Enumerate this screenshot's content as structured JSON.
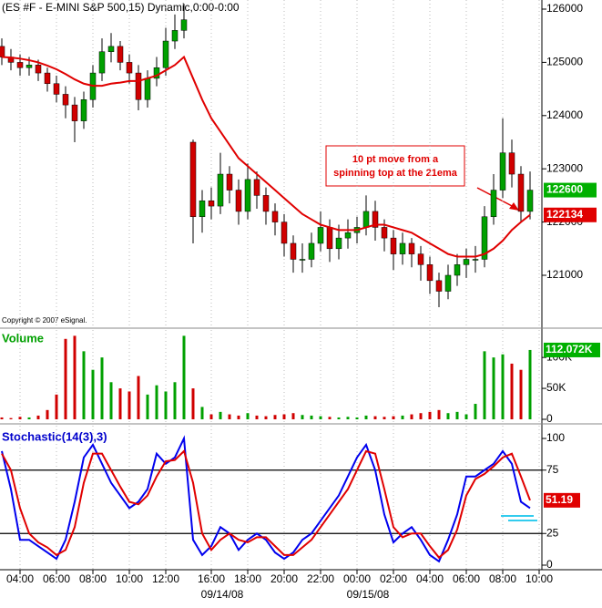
{
  "chart_data": [
    {
      "type": "candlestick",
      "title": "(ES #F - E-MINI S&P 500,15) Dynamic,0:00-0:00",
      "copyright": "Copyright © 2007 eSignal.",
      "annotation": "10 pt move from a spinning top at the 21ema",
      "ylim": [
        120050,
        126170
      ],
      "yticks": [
        121000,
        122000,
        123000,
        124000,
        125000,
        126000
      ],
      "up_color": "#00a000",
      "down_color": "#d00000",
      "open": [
        125300,
        125100,
        125000,
        124900,
        124950,
        124800,
        124600,
        124400,
        124200,
        123900,
        124300,
        124800,
        125200,
        125300,
        125000,
        124800,
        124300,
        124700,
        124900,
        125400,
        125600,
        123500,
        122100,
        122400,
        122300,
        122900,
        122600,
        122200,
        122800,
        122500,
        122200,
        122000,
        121600,
        121300,
        121300,
        121600,
        121900,
        121500,
        121700,
        121800,
        121900,
        122200,
        121900,
        121700,
        121400,
        121600,
        121400,
        121200,
        120900,
        120700,
        121000,
        121200,
        121300,
        121300,
        122100,
        122600,
        123300,
        122900,
        122200,
        null
      ],
      "high": [
        125450,
        125250,
        125150,
        125100,
        125050,
        124900,
        124750,
        124550,
        124350,
        124450,
        124950,
        125450,
        125550,
        125400,
        125150,
        124950,
        124850,
        125100,
        125650,
        125900,
        126100,
        123550,
        122600,
        122650,
        123300,
        123050,
        122800,
        123100,
        122950,
        122650,
        122350,
        122150,
        121750,
        121600,
        121800,
        122200,
        122050,
        121950,
        122050,
        122100,
        122500,
        122400,
        122050,
        121850,
        121800,
        121700,
        121550,
        121350,
        121050,
        121200,
        121400,
        121500,
        121550,
        122300,
        122900,
        123950,
        123550,
        123050,
        122950,
        null
      ],
      "low": [
        124950,
        124850,
        124750,
        124750,
        124650,
        124450,
        124250,
        123950,
        123500,
        123750,
        124150,
        124650,
        125000,
        124850,
        124600,
        124100,
        124150,
        124550,
        124750,
        125250,
        125450,
        121600,
        121800,
        122050,
        122150,
        122350,
        121950,
        122050,
        122250,
        121950,
        121750,
        121350,
        121050,
        121050,
        121150,
        121450,
        121250,
        121300,
        121500,
        121600,
        121750,
        121650,
        121450,
        121100,
        121200,
        121150,
        120900,
        120650,
        120400,
        120550,
        120800,
        120950,
        121050,
        121150,
        121950,
        122450,
        122650,
        122000,
        122050,
        null
      ],
      "close": [
        125100,
        125000,
        124900,
        124950,
        124800,
        124600,
        124400,
        124200,
        123900,
        124300,
        124800,
        125200,
        125300,
        125000,
        124800,
        124300,
        124700,
        124900,
        125400,
        125600,
        125800,
        122100,
        122400,
        122300,
        122900,
        122600,
        122200,
        122800,
        122500,
        122200,
        122000,
        121600,
        121300,
        121300,
        121600,
        121900,
        121500,
        121700,
        121800,
        121900,
        122200,
        121900,
        121700,
        121400,
        121600,
        121400,
        121200,
        120900,
        120700,
        121000,
        121200,
        121300,
        121300,
        122100,
        122600,
        123300,
        122900,
        122200,
        122600,
        null
      ],
      "ema": {
        "color": "#e00000",
        "values": [
          125100,
          125090,
          125070,
          125040,
          125000,
          124940,
          124870,
          124780,
          124680,
          124600,
          124560,
          124560,
          124600,
          124620,
          124650,
          124650,
          124700,
          124750,
          124850,
          124950,
          125100,
          124700,
          124300,
          123950,
          123700,
          123450,
          123200,
          123050,
          122900,
          122750,
          122600,
          122450,
          122300,
          122150,
          122050,
          121950,
          121900,
          121850,
          121850,
          121850,
          121900,
          121950,
          121950,
          121900,
          121850,
          121800,
          121700,
          121600,
          121500,
          121400,
          121350,
          121350,
          121350,
          121400,
          121500,
          121650,
          121850,
          122000,
          122134,
          null
        ]
      },
      "price_labels": [
        {
          "value": 122600,
          "color": "#00b000"
        },
        {
          "value": 122134,
          "color": "#e00000"
        }
      ]
    },
    {
      "type": "bar",
      "title": "Volume",
      "title_color": "#00a000",
      "ylim": [
        0,
        140000
      ],
      "yticks": [
        0,
        {
          "value": 50000,
          "label": "50K"
        },
        {
          "value": 100000,
          "label": "100K"
        }
      ],
      "values": [
        3000,
        2000,
        4000,
        3000,
        6000,
        15000,
        40000,
        130000,
        135000,
        110000,
        80000,
        100000,
        60000,
        50000,
        45000,
        70000,
        40000,
        55000,
        45000,
        60000,
        135000,
        50000,
        20000,
        8000,
        12000,
        8000,
        6000,
        10000,
        6000,
        5000,
        7000,
        8000,
        10000,
        7000,
        6000,
        5000,
        4000,
        3000,
        4000,
        3000,
        6000,
        5000,
        4000,
        5000,
        6000,
        8000,
        10000,
        12000,
        15000,
        10000,
        12000,
        8000,
        25000,
        110000,
        100000,
        105000,
        90000,
        80000,
        112072,
        null
      ],
      "last_label": {
        "value": 112072,
        "label": "112.072K",
        "color": "#00b000"
      }
    },
    {
      "type": "line",
      "title": "Stochastic(14(3),3)",
      "title_color": "#0000cc",
      "ylim": [
        0,
        100
      ],
      "yticks": [
        0,
        25,
        75,
        100
      ],
      "levels": [
        25,
        75
      ],
      "categories": [
        null,
        null,
        "04:00",
        null,
        null,
        null,
        "06:00",
        null,
        null,
        null,
        "08:00",
        null,
        null,
        null,
        "10:00",
        null,
        null,
        null,
        "12:00",
        null,
        null,
        null,
        null,
        "16:00",
        null,
        null,
        null,
        "18:00",
        null,
        null,
        null,
        "20:00",
        null,
        null,
        null,
        "22:00",
        null,
        null,
        null,
        "00:00",
        null,
        null,
        null,
        "02:00",
        null,
        null,
        null,
        "04:00",
        null,
        null,
        null,
        "06:00",
        null,
        null,
        null,
        "08:00",
        null,
        null,
        null,
        "10:00"
      ],
      "date_labels": [
        "09/14/08",
        "09/15/08"
      ],
      "series": [
        {
          "color": "#0000ee",
          "values": [
            90,
            60,
            20,
            20,
            15,
            10,
            5,
            20,
            50,
            85,
            95,
            80,
            65,
            55,
            45,
            50,
            60,
            88,
            80,
            85,
            100,
            20,
            8,
            15,
            30,
            25,
            12,
            20,
            25,
            20,
            10,
            5,
            10,
            20,
            25,
            35,
            45,
            55,
            70,
            85,
            95,
            75,
            40,
            18,
            25,
            30,
            20,
            8,
            3,
            20,
            40,
            70,
            70,
            75,
            80,
            90,
            80,
            50,
            45,
            null
          ]
        },
        {
          "color": "#e00000",
          "values": [
            88,
            75,
            45,
            25,
            18,
            14,
            8,
            12,
            30,
            65,
            88,
            88,
            75,
            62,
            50,
            48,
            55,
            70,
            82,
            83,
            90,
            65,
            25,
            12,
            20,
            25,
            20,
            18,
            22,
            22,
            15,
            8,
            8,
            14,
            20,
            30,
            40,
            50,
            60,
            75,
            90,
            88,
            60,
            30,
            22,
            25,
            25,
            15,
            6,
            12,
            28,
            55,
            68,
            72,
            78,
            85,
            88,
            70,
            51.19,
            null
          ]
        }
      ],
      "last_label": {
        "value": 51.19,
        "color": "#e00000"
      }
    }
  ]
}
